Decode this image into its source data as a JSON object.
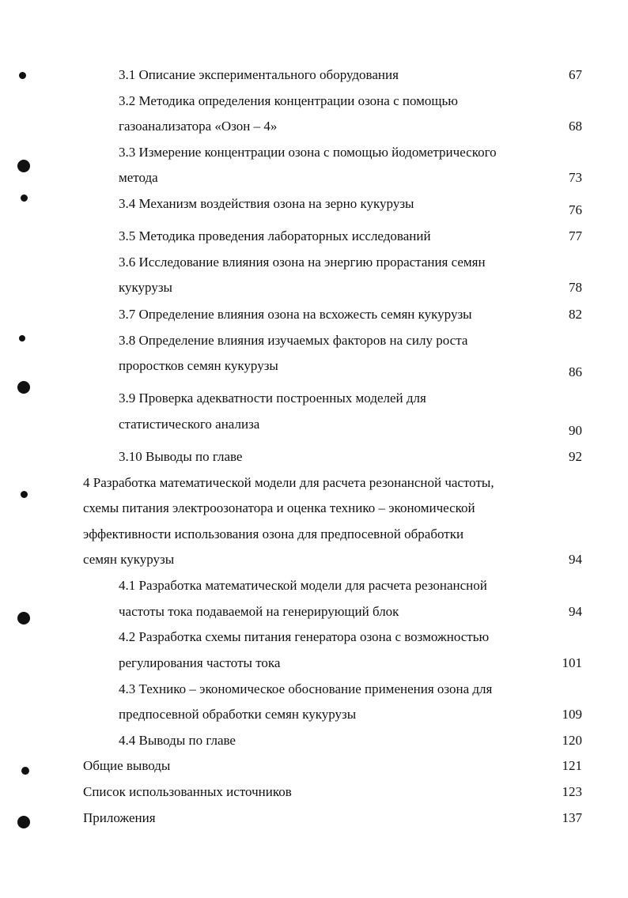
{
  "toc": {
    "entries": [
      {
        "level": 2,
        "lines": [
          "3.1  Описание экспериментального оборудования"
        ],
        "page": "67"
      },
      {
        "level": 2,
        "lines": [
          "3.2  Методика определения концентрации озона с помощью",
          "газоанализатора «Озон – 4»"
        ],
        "page": "68"
      },
      {
        "level": 2,
        "lines": [
          "3.3 Измерение концентрации озона с помощью йодометрического",
          "метода"
        ],
        "page": "73"
      },
      {
        "level": 2,
        "lines": [
          "3.4 Механизм воздействия озона на зерно кукурузы"
        ],
        "page": "76"
      },
      {
        "level": 2,
        "lines": [
          "3.5 Методика проведения лабораторных исследований"
        ],
        "page": "77"
      },
      {
        "level": 2,
        "lines": [
          "3.6 Исследование влияния озона на энергию прорастания семян",
          "кукурузы"
        ],
        "page": "78"
      },
      {
        "level": 2,
        "lines": [
          "3.7 Определение влияния озона на всхожесть семян кукурузы"
        ],
        "page": "82"
      },
      {
        "level": 2,
        "lines": [
          "3.8 Определение влияния изучаемых факторов на силу роста",
          "проростков семян кукурузы"
        ],
        "page": "86"
      },
      {
        "level": 2,
        "lines": [
          "3.9 Проверка адекватности построенных моделей для",
          "статистического анализа"
        ],
        "page": "90"
      },
      {
        "level": 2,
        "lines": [
          "3.10 Выводы по главе"
        ],
        "page": "92"
      },
      {
        "level": 1,
        "lines": [
          "4 Разработка математической модели для расчета резонансной частоты,",
          "схемы питания электроозонатора и оценка технико – экономической",
          "эффективности использования озона для предпосевной обработки",
          "семян кукурузы"
        ],
        "page": "94"
      },
      {
        "level": 2,
        "lines": [
          "4.1 Разработка математической модели для расчета резонансной",
          "частоты тока подаваемой на генерирующий блок"
        ],
        "page": "94"
      },
      {
        "level": 2,
        "lines": [
          "4.2 Разработка схемы питания генератора озона с возможностью",
          "регулирования частоты тока"
        ],
        "page": "101"
      },
      {
        "level": 2,
        "lines": [
          "4.3 Технико – экономическое обоснование применения озона для",
          "предпосевной обработки семян кукурузы"
        ],
        "page": "109"
      },
      {
        "level": 2,
        "lines": [
          "4.4 Выводы по главе"
        ],
        "page": "120"
      },
      {
        "level": 1,
        "lines": [
          "Общие выводы"
        ],
        "page": "121"
      },
      {
        "level": 1,
        "lines": [
          "Список использованных источников"
        ],
        "page": "123"
      },
      {
        "level": 1,
        "lines": [
          "Приложения"
        ],
        "page": "137"
      }
    ]
  }
}
